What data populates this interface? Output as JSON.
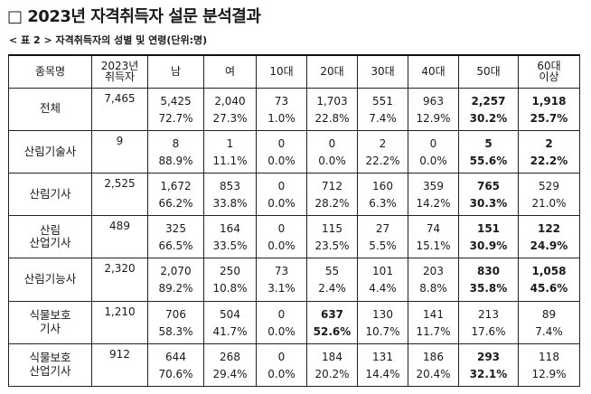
{
  "title": "□ 2023년 자격취득자 설문 분석결과",
  "subtitle": "< 표 2 > 자격취득자의 성별 및 연령(단위:명)",
  "headers": [
    "종목명",
    "2023년 취득자",
    "남",
    "여",
    "10대",
    "20대",
    "30대",
    "40대",
    "50대",
    "60대 이상"
  ],
  "header_lines": {
    "h1": [
      "2023년",
      "취득자"
    ],
    "h9": [
      "60대",
      "이상"
    ]
  },
  "rows": [
    {
      "name": [
        "전체"
      ],
      "total": "7,465",
      "cells": [
        {
          "n": "5,425",
          "p": "72.7%"
        },
        {
          "n": "2,040",
          "p": "27.3%"
        },
        {
          "n": "73",
          "p": "1.0%"
        },
        {
          "n": "1,703",
          "p": "22.8%"
        },
        {
          "n": "551",
          "p": "7.4%"
        },
        {
          "n": "963",
          "p": "12.9%"
        },
        {
          "n": "2,257",
          "p": "30.2%",
          "bold": true
        },
        {
          "n": "1,918",
          "p": "25.7%",
          "bold": true
        }
      ]
    },
    {
      "name": [
        "산림기술사"
      ],
      "total": "9",
      "cells": [
        {
          "n": "8",
          "p": "88.9%"
        },
        {
          "n": "1",
          "p": "11.1%"
        },
        {
          "n": "0",
          "p": "0.0%"
        },
        {
          "n": "0",
          "p": "0.0%"
        },
        {
          "n": "2",
          "p": "22.2%"
        },
        {
          "n": "0",
          "p": "0.0%"
        },
        {
          "n": "5",
          "p": "55.6%",
          "bold": true
        },
        {
          "n": "2",
          "p": "22.2%",
          "bold": true
        }
      ]
    },
    {
      "name": [
        "산림기사"
      ],
      "total": "2,525",
      "cells": [
        {
          "n": "1,672",
          "p": "66.2%"
        },
        {
          "n": "853",
          "p": "33.8%"
        },
        {
          "n": "0",
          "p": "0.0%"
        },
        {
          "n": "712",
          "p": "28.2%"
        },
        {
          "n": "160",
          "p": "6.3%"
        },
        {
          "n": "359",
          "p": "14.2%"
        },
        {
          "n": "765",
          "p": "30.3%",
          "bold": true
        },
        {
          "n": "529",
          "p": "21.0%"
        }
      ]
    },
    {
      "name": [
        "산림",
        "산업기사"
      ],
      "total": "489",
      "cells": [
        {
          "n": "325",
          "p": "66.5%"
        },
        {
          "n": "164",
          "p": "33.5%"
        },
        {
          "n": "0",
          "p": "0.0%"
        },
        {
          "n": "115",
          "p": "23.5%"
        },
        {
          "n": "27",
          "p": "5.5%"
        },
        {
          "n": "74",
          "p": "15.1%"
        },
        {
          "n": "151",
          "p": "30.9%",
          "bold": true
        },
        {
          "n": "122",
          "p": "24.9%",
          "bold": true
        }
      ]
    },
    {
      "name": [
        "산림기능사"
      ],
      "total": "2,320",
      "cells": [
        {
          "n": "2,070",
          "p": "89.2%"
        },
        {
          "n": "250",
          "p": "10.8%"
        },
        {
          "n": "73",
          "p": "3.1%"
        },
        {
          "n": "55",
          "p": "2.4%"
        },
        {
          "n": "101",
          "p": "4.4%"
        },
        {
          "n": "203",
          "p": "8.8%"
        },
        {
          "n": "830",
          "p": "35.8%",
          "bold": true
        },
        {
          "n": "1,058",
          "p": "45.6%",
          "bold": true
        }
      ]
    },
    {
      "name": [
        "식물보호",
        "기사"
      ],
      "total": "1,210",
      "cells": [
        {
          "n": "706",
          "p": "58.3%"
        },
        {
          "n": "504",
          "p": "41.7%"
        },
        {
          "n": "0",
          "p": "0.0%"
        },
        {
          "n": "637",
          "p": "52.6%",
          "bold": true
        },
        {
          "n": "130",
          "p": "10.7%"
        },
        {
          "n": "141",
          "p": "11.7%"
        },
        {
          "n": "213",
          "p": "17.6%"
        },
        {
          "n": "89",
          "p": "7.4%"
        }
      ]
    },
    {
      "name": [
        "식물보호",
        "산업기사"
      ],
      "total": "912",
      "cells": [
        {
          "n": "644",
          "p": "70.6%"
        },
        {
          "n": "268",
          "p": "29.4%"
        },
        {
          "n": "0",
          "p": "0.0%"
        },
        {
          "n": "184",
          "p": "20.2%"
        },
        {
          "n": "131",
          "p": "14.4%"
        },
        {
          "n": "186",
          "p": "20.4%"
        },
        {
          "n": "293",
          "p": "32.1%",
          "bold": true
        },
        {
          "n": "118",
          "p": "12.9%"
        }
      ]
    }
  ]
}
